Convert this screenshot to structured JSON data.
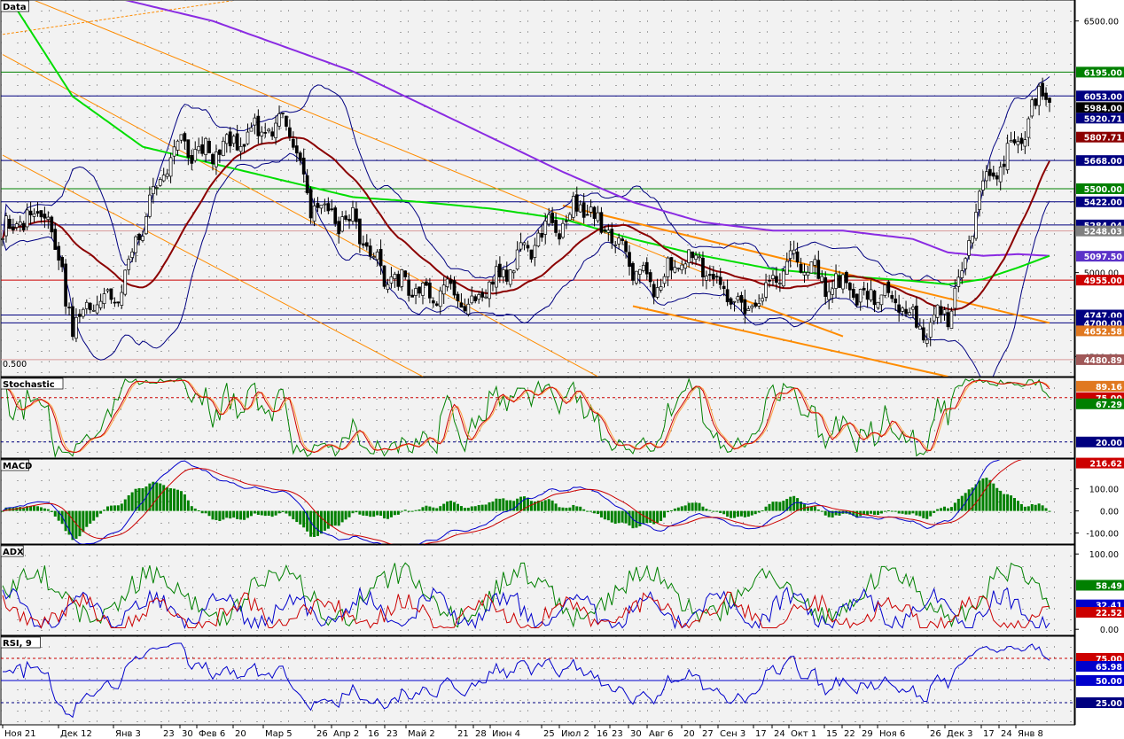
{
  "chart_data": {
    "type": "candlestick",
    "panels": [
      {
        "key": "main",
        "title": "Data",
        "yticks": [
          {
            "v": 6500,
            "t": "6500.00"
          },
          {
            "v": 5000,
            "t": "5000.00"
          },
          {
            "v": 4500,
            "t": "4500.00"
          }
        ],
        "levels": [
          {
            "v": 6195,
            "t": "6195.00",
            "color": "#008000",
            "kind": "h"
          },
          {
            "v": 6053,
            "t": "6053.00",
            "color": "#000080",
            "kind": "h"
          },
          {
            "v": 5984,
            "t": "5984.00",
            "color": "#000000",
            "kind": "tag"
          },
          {
            "v": 5920.71,
            "t": "5920.71",
            "color": "#000080",
            "kind": "tag"
          },
          {
            "v": 5807.71,
            "t": "5807.71",
            "color": "#8b0000",
            "kind": "tag"
          },
          {
            "v": 5668,
            "t": "5668.00",
            "color": "#000080",
            "kind": "h"
          },
          {
            "v": 5500,
            "t": "5500.00",
            "color": "#008000",
            "kind": "h"
          },
          {
            "v": 5422,
            "t": "5422.00",
            "color": "#000080",
            "kind": "h"
          },
          {
            "v": 5284.04,
            "t": "5284.04",
            "color": "#000080",
            "kind": "h"
          },
          {
            "v": 5248.03,
            "t": "5248.03",
            "color": "#808080",
            "kind": "tag"
          },
          {
            "v": 5097.5,
            "t": "5097.50",
            "color": "#5b32c8",
            "kind": "tag"
          },
          {
            "v": 4955,
            "t": "4955.00",
            "color": "#cc0000",
            "kind": "h"
          },
          {
            "v": 4747,
            "t": "4747.00",
            "color": "#000080",
            "kind": "h"
          },
          {
            "v": 4700,
            "t": "4700.00",
            "color": "#000080",
            "kind": "h"
          },
          {
            "v": 4652.58,
            "t": "4652.58",
            "color": "#e07820",
            "kind": "tag"
          },
          {
            "v": 4480.89,
            "t": "4480.89",
            "color": "#a05858",
            "kind": "tag"
          }
        ],
        "annotation": "0.500"
      },
      {
        "key": "stoch",
        "title": "Stochastic",
        "yticks": [],
        "levels": [
          {
            "v": 89.16,
            "t": "89.16",
            "color": "#e07820",
            "kind": "tag"
          },
          {
            "v": 75,
            "t": "75.00",
            "color": "#cc0000",
            "kind": "hdash"
          },
          {
            "v": 67.29,
            "t": "67.29",
            "color": "#008000",
            "kind": "tag"
          },
          {
            "v": 20,
            "t": "20.00",
            "color": "#000080",
            "kind": "hdash"
          }
        ]
      },
      {
        "key": "macd",
        "title": "MACD",
        "yticks": [
          {
            "v": 100,
            "t": "100.00"
          },
          {
            "v": 0,
            "t": "0.00"
          },
          {
            "v": -100,
            "t": "-100.00"
          }
        ],
        "levels": [
          {
            "v": 216.62,
            "t": "216.62",
            "color": "#cc0000",
            "kind": "tag"
          }
        ]
      },
      {
        "key": "adx",
        "title": "ADX",
        "yticks": [
          {
            "v": 100,
            "t": "100.00"
          },
          {
            "v": 0,
            "t": "0.00"
          }
        ],
        "levels": [
          {
            "v": 58.49,
            "t": "58.49",
            "color": "#008000",
            "kind": "tag"
          },
          {
            "v": 32.41,
            "t": "32.41",
            "color": "#0000cc",
            "kind": "tag"
          },
          {
            "v": 22.52,
            "t": "22.52",
            "color": "#cc0000",
            "kind": "tag"
          }
        ]
      },
      {
        "key": "rsi",
        "title": "RSI, 9",
        "yticks": [],
        "levels": [
          {
            "v": 75,
            "t": "75.00",
            "color": "#cc0000",
            "kind": "hdash"
          },
          {
            "v": 65.98,
            "t": "65.98",
            "color": "#0000cc",
            "kind": "tag"
          },
          {
            "v": 50,
            "t": "50.00",
            "color": "#0000cc",
            "kind": "h"
          },
          {
            "v": 25,
            "t": "25.00",
            "color": "#000080",
            "kind": "hdash"
          }
        ]
      }
    ],
    "x_labels": [
      "Ноя 21",
      "Дек 12",
      "Янв 3",
      "23",
      "30",
      "Фев 6",
      "20",
      "Мар 5",
      "26",
      "Апр 2",
      "16",
      "23",
      "Май 2",
      "21",
      "28",
      "Июн 4",
      "25",
      "Июл 2",
      "16",
      "23",
      "30",
      "Авг 6",
      "20",
      "27",
      "Сен 3",
      "17",
      "24",
      "Окт 1",
      "15",
      "22",
      "29",
      "Ноя 6",
      "26",
      "Дек 3",
      "17",
      "24",
      "Янв 8"
    ],
    "colors": {
      "bollinger": "#000080",
      "ma_green": "#00dd00",
      "ma_purple": "#8a2be2",
      "ma_darkred": "#8b0000",
      "trend_orange": "#ff8c00",
      "stoch_fast": "#008000",
      "stoch_slow": "#cc0000",
      "macd_line": "#0000cc",
      "signal": "#cc0000",
      "hist": "#008000",
      "adx": "#008000",
      "plus_di": "#0000cc",
      "minus_di": "#cc0000",
      "rsi": "#0000cc",
      "grid": "#555555",
      "bg": "#f2f2f2"
    }
  }
}
